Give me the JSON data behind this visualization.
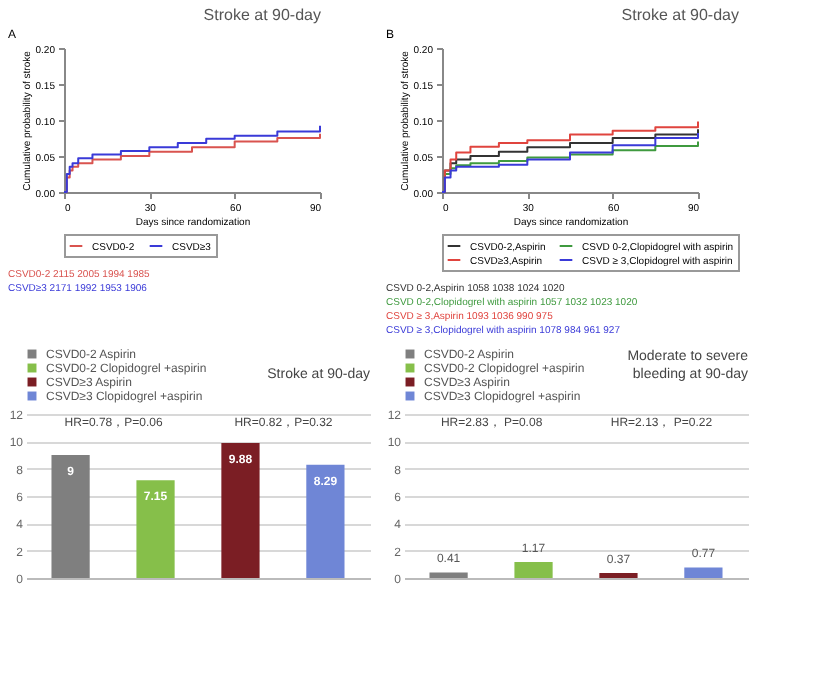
{
  "chart_data": [
    {
      "type": "step",
      "title": "Stroke at 90-day",
      "xlabel": "Days since randomization",
      "ylabel": "Cumulative probability of stroke",
      "xlim": [
        0,
        90
      ],
      "xticks": [
        0,
        30,
        60,
        90
      ],
      "ylim": [
        0,
        0.2
      ],
      "yticks": [
        {
          "value": 0,
          "label": "0.00"
        },
        0.05,
        {
          "value": 0.1,
          "label": "0.10"
        },
        0.15,
        {
          "value": 0.2,
          "label": "0.20"
        }
      ],
      "legend": "bottom",
      "annotations": [
        "A",
        "CSVD0-2  2115  2005  1994  1985",
        "CSVD≥3  2171  1992  1953  1906"
      ],
      "series": [
        {
          "name": "CSVD0-2",
          "color": "#d9534f",
          "x": [
            0,
            1,
            2,
            3,
            5,
            10,
            20,
            30,
            45,
            60,
            75,
            90
          ],
          "values": [
            0,
            0.02,
            0.03,
            0.035,
            0.04,
            0.045,
            0.05,
            0.056,
            0.062,
            0.07,
            0.075,
            0.081
          ]
        },
        {
          "name": "CSVD≥3",
          "color": "#3a3ad8",
          "x": [
            0,
            1,
            2,
            3,
            5,
            10,
            20,
            30,
            40,
            50,
            60,
            75,
            90
          ],
          "values": [
            0,
            0.025,
            0.035,
            0.04,
            0.047,
            0.052,
            0.057,
            0.062,
            0.068,
            0.074,
            0.078,
            0.084,
            0.092
          ]
        }
      ]
    },
    {
      "type": "step",
      "title": "Stroke at 90-day",
      "xlabel": "Days since randomization",
      "ylabel": "Cumulative probability of stroke",
      "xlim": [
        0,
        90
      ],
      "xticks": [
        0,
        30,
        60,
        90
      ],
      "ylim": [
        0,
        0.2
      ],
      "yticks": [
        {
          "value": 0,
          "label": "0.00"
        },
        0.05,
        {
          "value": 0.1,
          "label": "0.10"
        },
        0.15,
        {
          "value": 0.2,
          "label": "0.20"
        }
      ],
      "legend": "bottom",
      "annotations": [
        "B",
        "CSVD 0-2,Aspirin  1058  1038  1024  1020",
        "CSVD 0-2,Clopidogrel with aspirin  1057  1032  1023  1020",
        "CSVD ≥ 3,Aspirin  1093  1036  990  975",
        "CSVD ≥ 3,Clopidogrel with aspirin  1078  984  961  927"
      ],
      "series": [
        {
          "name": "CSVD0-2,Aspirin",
          "color": "#333333",
          "x": [
            0,
            1,
            3,
            5,
            10,
            20,
            30,
            45,
            60,
            75,
            90
          ],
          "values": [
            0,
            0.03,
            0.04,
            0.045,
            0.05,
            0.056,
            0.062,
            0.068,
            0.075,
            0.08,
            0.087
          ]
        },
        {
          "name": "CSVD 0-2,Clopidogrel with aspirin",
          "color": "#3f9a3f",
          "x": [
            0,
            1,
            3,
            5,
            10,
            20,
            30,
            45,
            60,
            75,
            90
          ],
          "values": [
            0,
            0.025,
            0.033,
            0.037,
            0.04,
            0.043,
            0.048,
            0.052,
            0.058,
            0.064,
            0.07
          ]
        },
        {
          "name": "CSVD≥3,Aspirin",
          "color": "#e0443e",
          "x": [
            0,
            1,
            3,
            5,
            10,
            20,
            30,
            45,
            60,
            75,
            90
          ],
          "values": [
            0,
            0.03,
            0.045,
            0.055,
            0.063,
            0.068,
            0.072,
            0.08,
            0.085,
            0.09,
            0.098
          ]
        },
        {
          "name": "CSVD ≥ 3,Clopidogrel with aspirin",
          "color": "#3a3ad8",
          "x": [
            0,
            1,
            3,
            5,
            10,
            20,
            30,
            45,
            60,
            75,
            90
          ],
          "values": [
            0,
            0.02,
            0.03,
            0.035,
            0.035,
            0.038,
            0.045,
            0.055,
            0.065,
            0.075,
            0.082
          ]
        }
      ]
    },
    {
      "type": "bar",
      "title": "Stroke at 90-day",
      "categories": [
        null,
        null,
        null,
        null
      ],
      "ylim": [
        0,
        12
      ],
      "yticks": [
        0,
        2,
        4,
        6,
        8,
        10,
        12
      ],
      "grid": "y",
      "legend": "top left",
      "data_labels": true,
      "annotations": [
        "HR=0.78，P=0.06",
        "HR=0.82，P=0.32"
      ],
      "series": [
        {
          "name": "CSVD0-2 Aspirin",
          "color": "#7f7f7f",
          "values": [
            9,
            null,
            null,
            null
          ]
        },
        {
          "name": "CSVD0-2 Clopidogrel +aspirin",
          "color": "#86bf4a",
          "values": [
            null,
            7.15,
            null,
            null
          ]
        },
        {
          "name": "CSVD≥3 Aspirin",
          "color": "#7b1e24",
          "values": [
            null,
            null,
            9.88,
            null
          ]
        },
        {
          "name": "CSVD≥3 Clopidogrel +aspirin",
          "color": "#6f86d6",
          "values": [
            null,
            null,
            null,
            8.29
          ]
        }
      ]
    },
    {
      "type": "bar",
      "title": "Moderate to severe\nbleeding at 90-day",
      "categories": [
        null,
        null,
        null,
        null
      ],
      "ylim": [
        0,
        12
      ],
      "yticks": [
        0,
        2,
        4,
        6,
        8,
        10,
        12
      ],
      "grid": "y",
      "legend": "top left",
      "data_labels": true,
      "annotations": [
        "HR=2.83， P=0.08",
        "HR=2.13， P=0.22"
      ],
      "series": [
        {
          "name": "CSVD0-2 Aspirin",
          "color": "#7f7f7f",
          "values": [
            0.41,
            null,
            null,
            null
          ]
        },
        {
          "name": "CSVD0-2 Clopidogrel +aspirin",
          "color": "#86bf4a",
          "values": [
            null,
            1.17,
            null,
            null
          ]
        },
        {
          "name": "CSVD≥3 Aspirin",
          "color": "#7b1e24",
          "values": [
            null,
            null,
            0.37,
            null
          ]
        },
        {
          "name": "CSVD≥3 Clopidogrel +aspirin",
          "color": "#6f86d6",
          "values": [
            null,
            null,
            null,
            0.77
          ]
        }
      ]
    }
  ]
}
